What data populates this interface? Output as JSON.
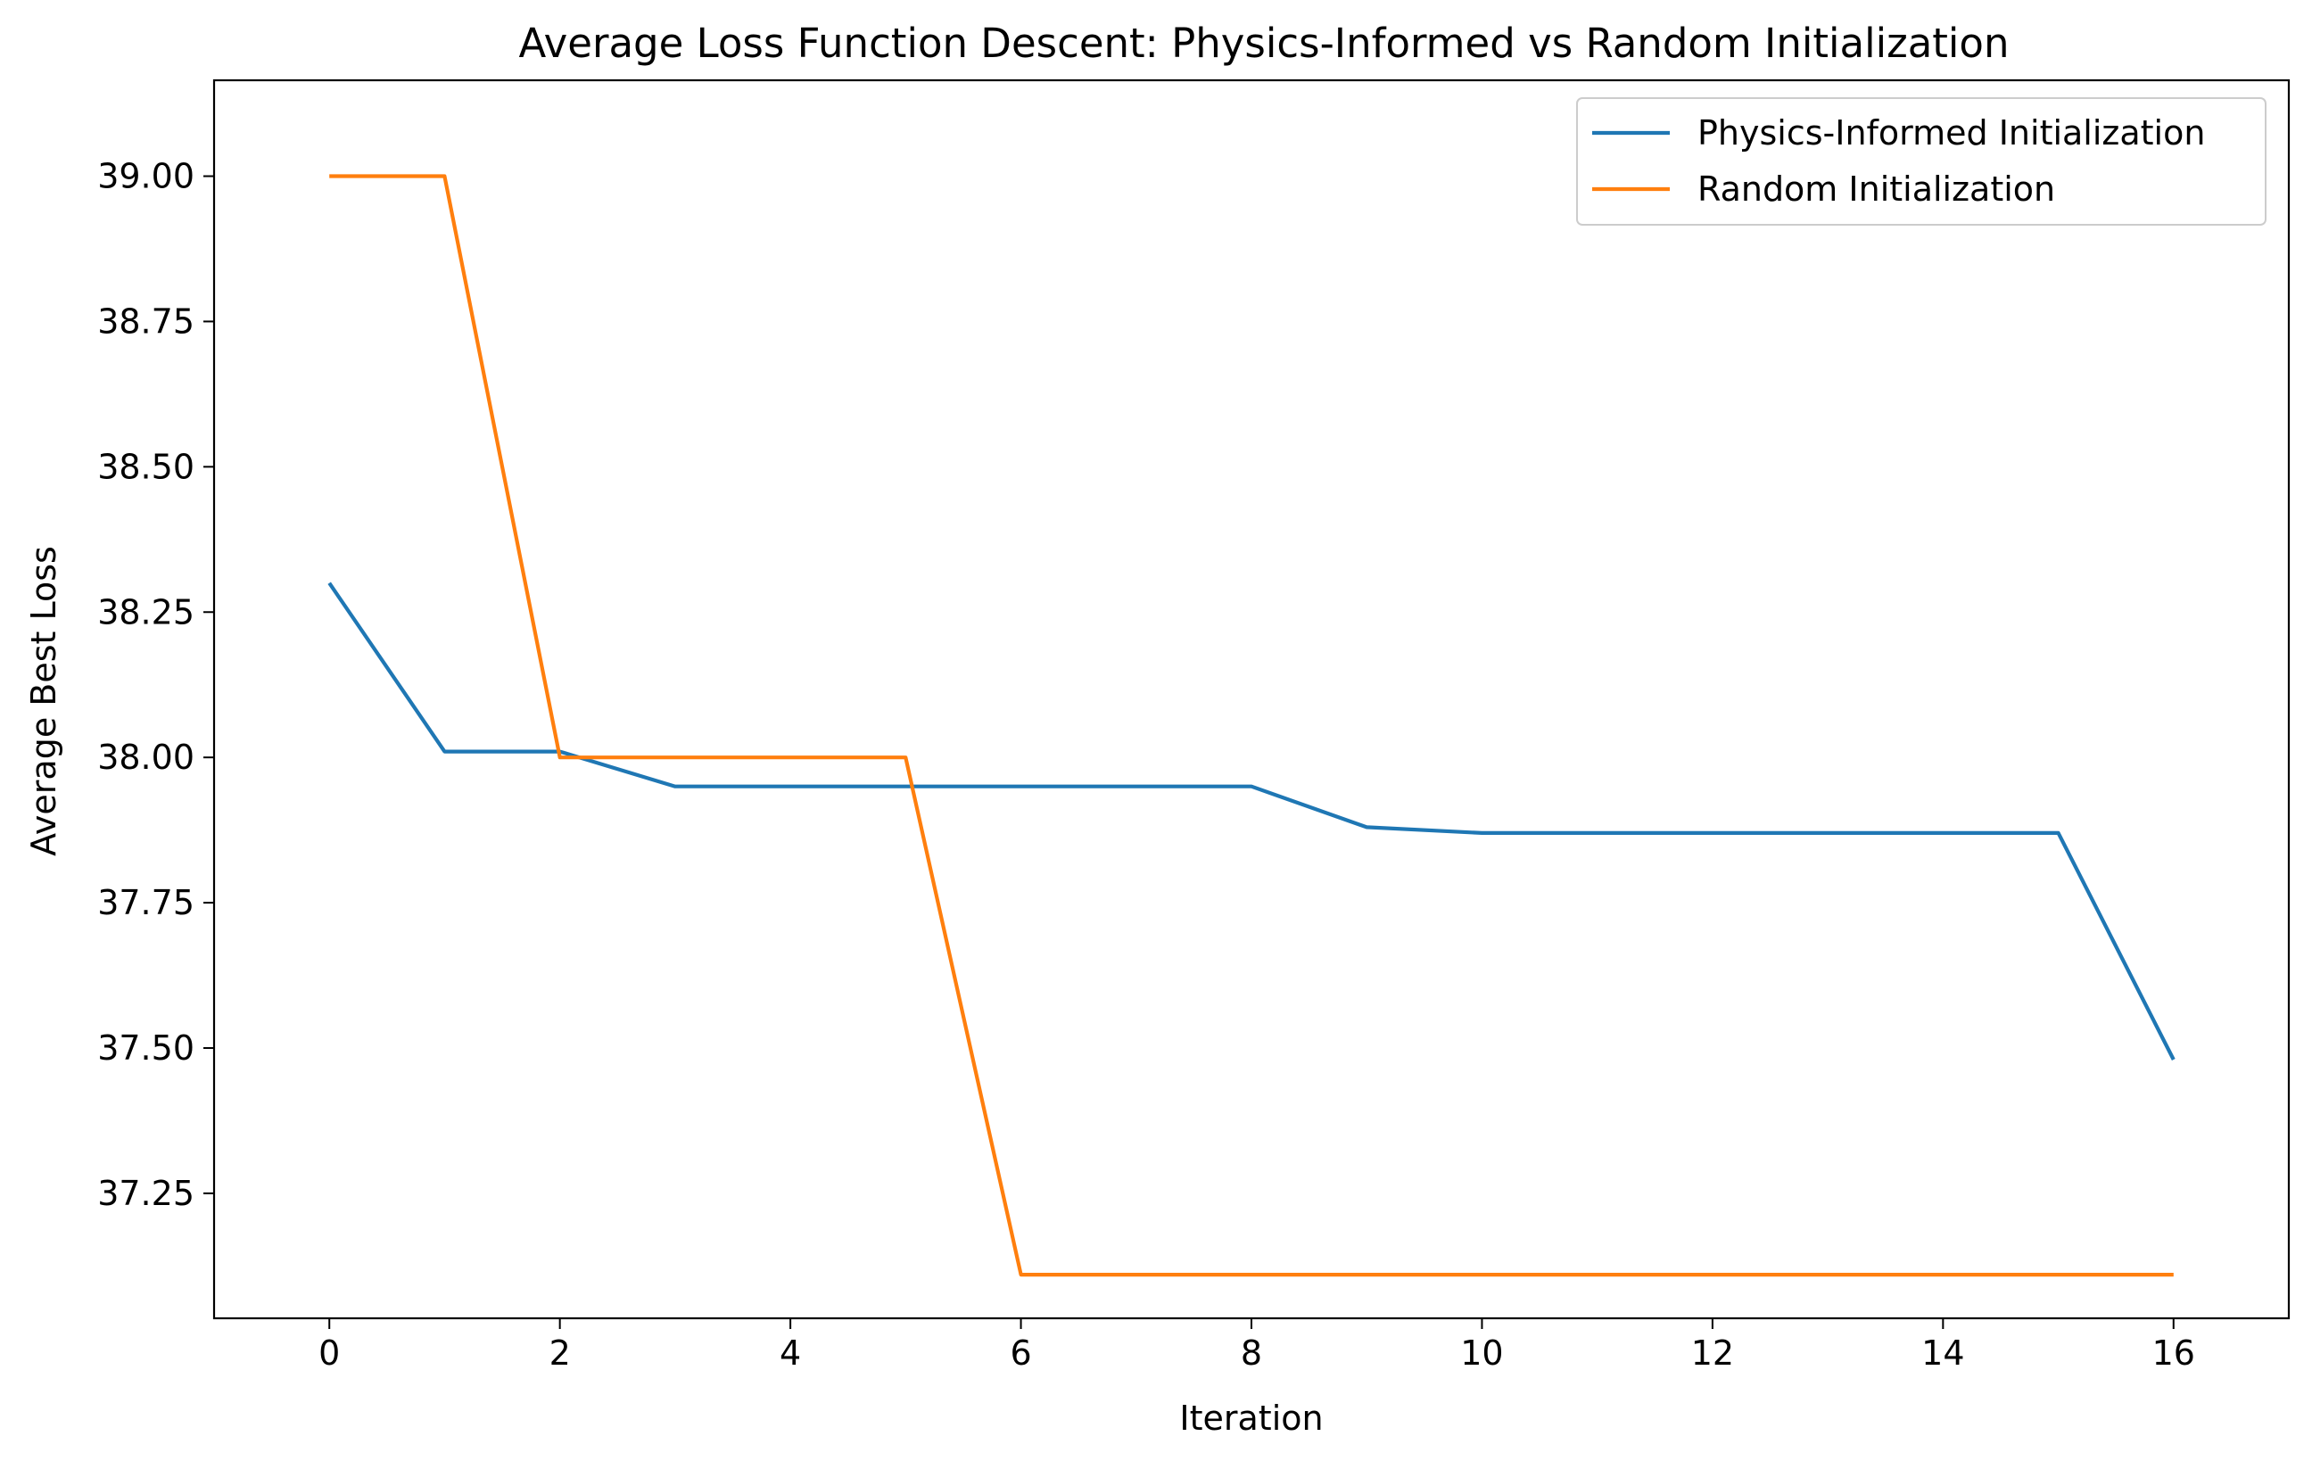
{
  "chart_data": {
    "type": "line",
    "title": "Average Loss Function Descent: Physics-Informed vs Random Initialization",
    "xlabel": "Iteration",
    "ylabel": "Average Best Loss",
    "xlim": [
      -1.0,
      17.0
    ],
    "ylim": [
      37.035,
      39.165
    ],
    "x_ticks": [
      0,
      2,
      4,
      6,
      8,
      10,
      12,
      14,
      16
    ],
    "x_tick_labels": [
      "0",
      "2",
      "4",
      "6",
      "8",
      "10",
      "12",
      "14",
      "16"
    ],
    "y_ticks": [
      37.25,
      37.5,
      37.75,
      38.0,
      38.25,
      38.5,
      38.75,
      39.0
    ],
    "y_tick_labels": [
      "37.25",
      "37.50",
      "37.75",
      "38.00",
      "38.25",
      "38.50",
      "38.75",
      "39.00"
    ],
    "grid": false,
    "legend_position": "top-right",
    "x": [
      0,
      1,
      2,
      3,
      4,
      5,
      6,
      7,
      8,
      9,
      10,
      11,
      12,
      13,
      14,
      15,
      16
    ],
    "series": [
      {
        "name": "Physics-Informed Initialization",
        "color": "#1f77b4",
        "values": [
          38.3,
          38.01,
          38.01,
          37.95,
          37.95,
          37.95,
          37.95,
          37.95,
          37.95,
          37.88,
          37.87,
          37.87,
          37.87,
          37.87,
          37.87,
          37.87,
          37.48
        ]
      },
      {
        "name": "Random Initialization",
        "color": "#ff7f0e",
        "values": [
          39.0,
          39.0,
          38.0,
          38.0,
          38.0,
          38.0,
          37.11,
          37.11,
          37.11,
          37.11,
          37.11,
          37.11,
          37.11,
          37.11,
          37.11,
          37.11,
          37.11
        ]
      }
    ]
  }
}
